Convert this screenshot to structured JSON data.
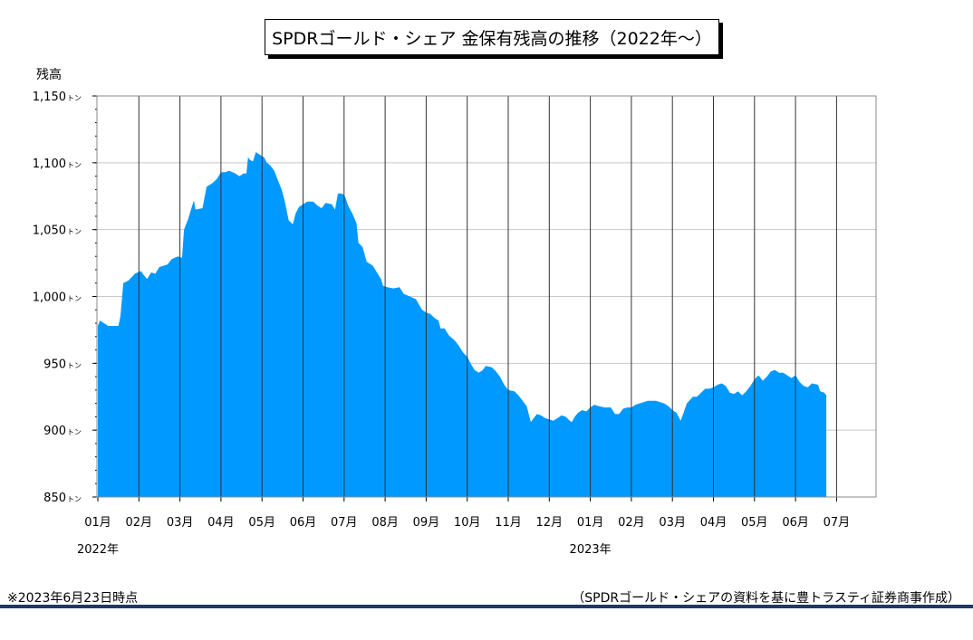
{
  "chart_data": {
    "type": "area",
    "title": "SPDRゴールド・シェア 金保有残高の推移（2022年～）",
    "ylabel": "残高",
    "ylim": [
      850,
      1150
    ],
    "yticks": [
      {
        "value": 850,
        "label": "850",
        "unit": "トン"
      },
      {
        "value": 900,
        "label": "900",
        "unit": "トン"
      },
      {
        "value": 950,
        "label": "950",
        "unit": "トン"
      },
      {
        "value": 1000,
        "label": "1,000",
        "unit": "トン"
      },
      {
        "value": 1050,
        "label": "1,050",
        "unit": "トン"
      },
      {
        "value": 1100,
        "label": "1,100",
        "unit": "トン"
      },
      {
        "value": 1150,
        "label": "1,150",
        "unit": "トン"
      }
    ],
    "xticks": [
      "01月",
      "02月",
      "03月",
      "04月",
      "05月",
      "06月",
      "07月",
      "08月",
      "09月",
      "10月",
      "11月",
      "12月",
      "01月",
      "02月",
      "03月",
      "04月",
      "05月",
      "06月",
      "07月"
    ],
    "year_labels": [
      {
        "label": "2022年",
        "tick_index": 0
      },
      {
        "label": "2023年",
        "tick_index": 12
      }
    ],
    "grid": true,
    "color": "#0099ff",
    "x_unit": "months since 2022-01-01",
    "series": [
      {
        "points": [
          [
            0.0,
            978
          ],
          [
            0.05,
            982
          ],
          [
            0.15,
            980
          ],
          [
            0.25,
            978
          ],
          [
            0.5,
            978
          ],
          [
            0.55,
            985
          ],
          [
            0.62,
            1010
          ],
          [
            0.75,
            1012
          ],
          [
            0.9,
            1017
          ],
          [
            1.05,
            1019
          ],
          [
            1.12,
            1016
          ],
          [
            1.2,
            1013
          ],
          [
            1.3,
            1018
          ],
          [
            1.4,
            1017
          ],
          [
            1.5,
            1022
          ],
          [
            1.7,
            1024
          ],
          [
            1.8,
            1028
          ],
          [
            1.95,
            1030
          ],
          [
            2.05,
            1029
          ],
          [
            2.1,
            1050
          ],
          [
            2.2,
            1058
          ],
          [
            2.28,
            1066
          ],
          [
            2.34,
            1072
          ],
          [
            2.38,
            1065
          ],
          [
            2.55,
            1066
          ],
          [
            2.65,
            1082
          ],
          [
            2.8,
            1085
          ],
          [
            2.9,
            1088
          ],
          [
            3.0,
            1093
          ],
          [
            3.1,
            1093
          ],
          [
            3.2,
            1094
          ],
          [
            3.35,
            1092
          ],
          [
            3.45,
            1090
          ],
          [
            3.55,
            1092
          ],
          [
            3.62,
            1092
          ],
          [
            3.66,
            1104
          ],
          [
            3.72,
            1102
          ],
          [
            3.78,
            1101
          ],
          [
            3.85,
            1108
          ],
          [
            3.95,
            1106
          ],
          [
            4.05,
            1104
          ],
          [
            4.12,
            1100
          ],
          [
            4.2,
            1098
          ],
          [
            4.3,
            1094
          ],
          [
            4.4,
            1086
          ],
          [
            4.48,
            1080
          ],
          [
            4.55,
            1072
          ],
          [
            4.65,
            1057
          ],
          [
            4.75,
            1054
          ],
          [
            4.82,
            1062
          ],
          [
            4.9,
            1067
          ],
          [
            5.0,
            1069
          ],
          [
            5.1,
            1071
          ],
          [
            5.25,
            1071
          ],
          [
            5.35,
            1068
          ],
          [
            5.45,
            1066
          ],
          [
            5.55,
            1070
          ],
          [
            5.7,
            1069
          ],
          [
            5.78,
            1065
          ],
          [
            5.85,
            1077
          ],
          [
            5.95,
            1077
          ],
          [
            6.02,
            1075
          ],
          [
            6.1,
            1068
          ],
          [
            6.2,
            1062
          ],
          [
            6.3,
            1055
          ],
          [
            6.35,
            1040
          ],
          [
            6.45,
            1037
          ],
          [
            6.55,
            1026
          ],
          [
            6.7,
            1023
          ],
          [
            6.8,
            1018
          ],
          [
            6.9,
            1013
          ],
          [
            6.95,
            1008
          ],
          [
            7.05,
            1007
          ],
          [
            7.2,
            1006
          ],
          [
            7.35,
            1007
          ],
          [
            7.45,
            1002
          ],
          [
            7.6,
            1000
          ],
          [
            7.75,
            998
          ],
          [
            7.9,
            990
          ],
          [
            8.0,
            988
          ],
          [
            8.1,
            987
          ],
          [
            8.2,
            984
          ],
          [
            8.3,
            982
          ],
          [
            8.35,
            976
          ],
          [
            8.45,
            976
          ],
          [
            8.55,
            971
          ],
          [
            8.7,
            967
          ],
          [
            8.8,
            963
          ],
          [
            8.9,
            958
          ],
          [
            9.0,
            955
          ],
          [
            9.1,
            949
          ],
          [
            9.18,
            945
          ],
          [
            9.28,
            943
          ],
          [
            9.38,
            945
          ],
          [
            9.45,
            948
          ],
          [
            9.6,
            947
          ],
          [
            9.7,
            944
          ],
          [
            9.8,
            940
          ],
          [
            9.9,
            934
          ],
          [
            10.0,
            930
          ],
          [
            10.15,
            929
          ],
          [
            10.25,
            926
          ],
          [
            10.35,
            922
          ],
          [
            10.45,
            918
          ],
          [
            10.5,
            912
          ],
          [
            10.55,
            906
          ],
          [
            10.62,
            909
          ],
          [
            10.7,
            912
          ],
          [
            10.8,
            911
          ],
          [
            10.9,
            909
          ],
          [
            11.0,
            908
          ],
          [
            11.1,
            907
          ],
          [
            11.2,
            909
          ],
          [
            11.3,
            911
          ],
          [
            11.4,
            910
          ],
          [
            11.5,
            907
          ],
          [
            11.55,
            906
          ],
          [
            11.62,
            910
          ],
          [
            11.7,
            913
          ],
          [
            11.8,
            915
          ],
          [
            11.9,
            914
          ],
          [
            12.0,
            917
          ],
          [
            12.1,
            919
          ],
          [
            12.2,
            918
          ],
          [
            12.35,
            917
          ],
          [
            12.5,
            917
          ],
          [
            12.6,
            912
          ],
          [
            12.7,
            912
          ],
          [
            12.8,
            916
          ],
          [
            12.9,
            917
          ],
          [
            13.0,
            917
          ],
          [
            13.1,
            919
          ],
          [
            13.2,
            920
          ],
          [
            13.3,
            921
          ],
          [
            13.4,
            922
          ],
          [
            13.6,
            922
          ],
          [
            13.7,
            921
          ],
          [
            13.8,
            920
          ],
          [
            13.9,
            918
          ],
          [
            14.0,
            915
          ],
          [
            14.1,
            913
          ],
          [
            14.2,
            907
          ],
          [
            14.25,
            911
          ],
          [
            14.35,
            920
          ],
          [
            14.5,
            925
          ],
          [
            14.6,
            925
          ],
          [
            14.7,
            928
          ],
          [
            14.8,
            931
          ],
          [
            14.9,
            931
          ],
          [
            15.0,
            932
          ],
          [
            15.1,
            934
          ],
          [
            15.2,
            935
          ],
          [
            15.3,
            933
          ],
          [
            15.4,
            928
          ],
          [
            15.5,
            927
          ],
          [
            15.6,
            929
          ],
          [
            15.7,
            926
          ],
          [
            15.8,
            929
          ],
          [
            15.9,
            933
          ],
          [
            16.0,
            938
          ],
          [
            16.1,
            941
          ],
          [
            16.2,
            937
          ],
          [
            16.3,
            940
          ],
          [
            16.4,
            944
          ],
          [
            16.5,
            945
          ],
          [
            16.6,
            943
          ],
          [
            16.7,
            943
          ],
          [
            16.8,
            941
          ],
          [
            16.9,
            939
          ],
          [
            17.0,
            941
          ],
          [
            17.1,
            936
          ],
          [
            17.2,
            933
          ],
          [
            17.3,
            932
          ],
          [
            17.4,
            935
          ],
          [
            17.55,
            934
          ],
          [
            17.6,
            929
          ],
          [
            17.7,
            928
          ],
          [
            17.75,
            926
          ]
        ]
      }
    ]
  },
  "footnote_left": "※2023年6月23日時点",
  "footnote_right": "（SPDRゴールド・シェアの資料を基に豊トラスティ証券商事作成）"
}
